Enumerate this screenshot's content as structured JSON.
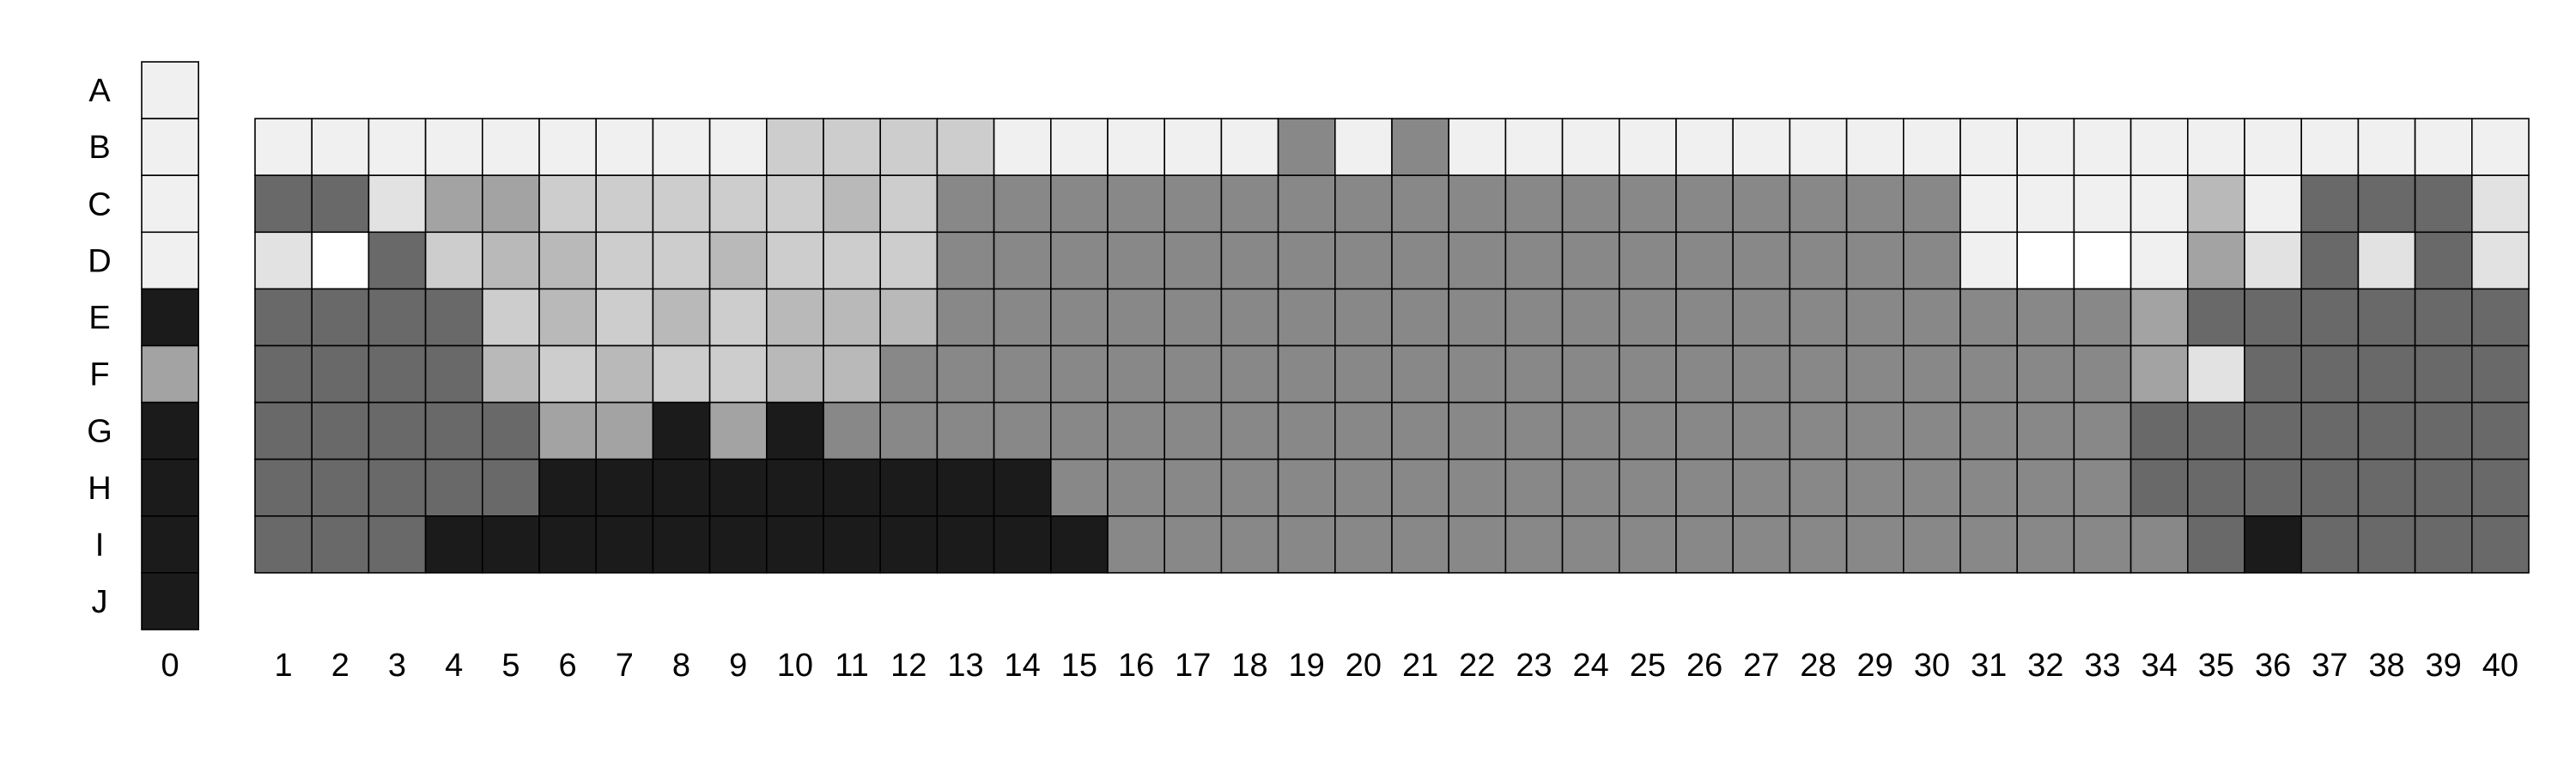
{
  "chart_data": {
    "type": "heatmap",
    "title": "",
    "xlabel": "",
    "ylabel": "",
    "rows": [
      "A",
      "B",
      "C",
      "D",
      "E",
      "F",
      "G",
      "H",
      "I",
      "J"
    ],
    "ref_column": {
      "label": "0",
      "values": [
        "#f0f0f0",
        "#f0f0f0",
        "#f0f0f0",
        "#f0f0f0",
        "#1b1b1b",
        "#a3a3a3",
        "#1b1b1b",
        "#1b1b1b",
        "#1b1b1b",
        "#1b1b1b"
      ]
    },
    "columns": [
      "1",
      "2",
      "3",
      "4",
      "5",
      "6",
      "7",
      "8",
      "9",
      "10",
      "11",
      "12",
      "13",
      "14",
      "15",
      "16",
      "17",
      "18",
      "19",
      "20",
      "21",
      "22",
      "23",
      "24",
      "25",
      "26",
      "27",
      "28",
      "29",
      "30",
      "31",
      "32",
      "33",
      "34",
      "35",
      "36",
      "37",
      "38",
      "39",
      "40"
    ],
    "grid_rows": [
      "B",
      "C",
      "D",
      "E",
      "F",
      "G",
      "H",
      "I"
    ],
    "legend": {
      "W": "#ffffff",
      "L": "#f0f0f0",
      "E": "#e2e2e2",
      "C": "#cdcdcd",
      "S": "#b9b9b9",
      "A": "#a3a3a3",
      "M": "#888888",
      "D": "#696969",
      "K": "#1b1b1b"
    },
    "grid": [
      "LLLLLLLLLCCCCLLLLLMLMLLLLLLLLLLLLLLLLLLL",
      "DDEAACCCCCSCMMMMMMMMMMMMMMMMMMLLLLSLDDDE",
      "EWDCSSCCSCCCMMMMMMMMMMMMMMMMMMLWWLAEDEDE",
      "DDDDCSCSCSSSMMMMMMMMMMMMMMMMMMMMMADDDDDD",
      "DDDDSCSCCSSMMMMMMMMMMMMMMMMMMMMMMAEDDDDD",
      "DDDDDAAKAKMMMMMMMMMMMMMMMMMMMMMMMDDDDDDD",
      "DDDDDKKKKKKKKKMMMMMMMMMMMMMMMMMMMDDDDDDD",
      "DDDKKKKKKKKKKKKMMMMMMMMMMMMMMMMMMMDKDDDD"
    ]
  }
}
